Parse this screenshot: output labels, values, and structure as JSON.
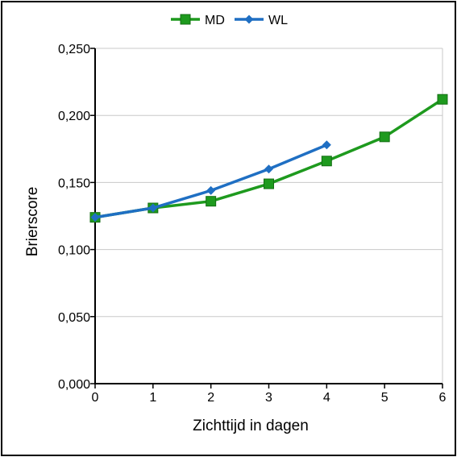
{
  "chart_data": {
    "type": "line",
    "title": "",
    "xlabel": "Zichttijd in dagen",
    "ylabel": "Brierscore",
    "xlim": [
      0,
      6
    ],
    "ylim": [
      0,
      0.25
    ],
    "grid": "horizontal",
    "legend_position": "top-center",
    "x_ticks": [
      "0",
      "1",
      "2",
      "3",
      "4",
      "5",
      "6"
    ],
    "y_ticks": [
      "0,000",
      "0,050",
      "0,100",
      "0,150",
      "0,200",
      "0,250"
    ],
    "series": [
      {
        "name": "MD",
        "color": "#1e9a1e",
        "marker": "square",
        "x": [
          0,
          1,
          2,
          3,
          4,
          5,
          6
        ],
        "values": [
          0.124,
          0.131,
          0.136,
          0.149,
          0.166,
          0.184,
          0.212
        ]
      },
      {
        "name": "WL",
        "color": "#1f6fc3",
        "marker": "diamond",
        "x": [
          0,
          1,
          2,
          3,
          4
        ],
        "values": [
          0.124,
          0.131,
          0.144,
          0.16,
          0.178
        ]
      }
    ]
  }
}
